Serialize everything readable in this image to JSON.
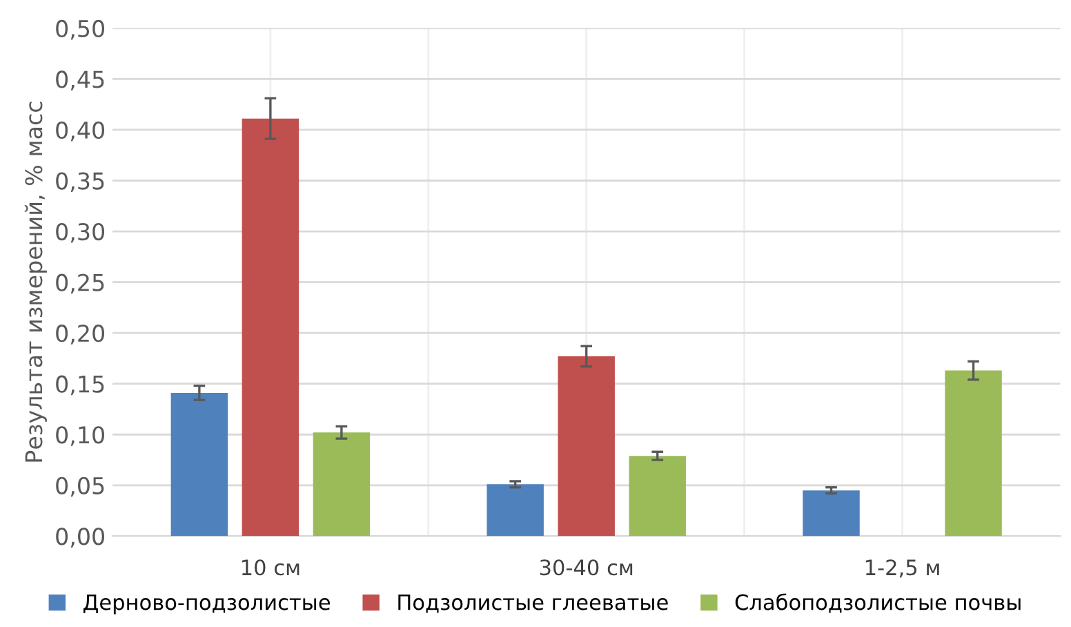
{
  "chart_data": {
    "type": "bar",
    "ylabel": "Результат измерений, % масс",
    "categories": [
      "10 см",
      "30-40 см",
      "1-2,5 м"
    ],
    "series": [
      {
        "name": "Дерново-подзолистые",
        "color": "#4f81bd",
        "values": [
          0.141,
          0.051,
          0.045
        ],
        "errors": [
          0.007,
          0.003,
          0.003
        ]
      },
      {
        "name": "Подзолистые глееватые",
        "color": "#c0504d",
        "values": [
          0.411,
          0.177,
          null
        ],
        "errors": [
          0.02,
          0.01,
          null
        ]
      },
      {
        "name": "Слабоподзолистые почвы",
        "color": "#9bbb59",
        "values": [
          0.102,
          0.079,
          0.163
        ],
        "errors": [
          0.006,
          0.004,
          0.009
        ]
      }
    ],
    "ylim": [
      0,
      0.5
    ],
    "yticks": [
      {
        "value": 0,
        "label": "0,00"
      },
      {
        "value": 0.05,
        "label": "0,05"
      },
      {
        "value": 0.1,
        "label": "0,10"
      },
      {
        "value": 0.15,
        "label": "0,15"
      },
      {
        "value": 0.2,
        "label": "0,20"
      },
      {
        "value": 0.25,
        "label": "0,25"
      },
      {
        "value": 0.3,
        "label": "0,30"
      },
      {
        "value": 0.35,
        "label": "0,35"
      },
      {
        "value": 0.4,
        "label": "0,40"
      },
      {
        "value": 0.45,
        "label": "0,45"
      },
      {
        "value": 0.5,
        "label": "0,50"
      }
    ],
    "grid": true,
    "legend": "bottom"
  }
}
